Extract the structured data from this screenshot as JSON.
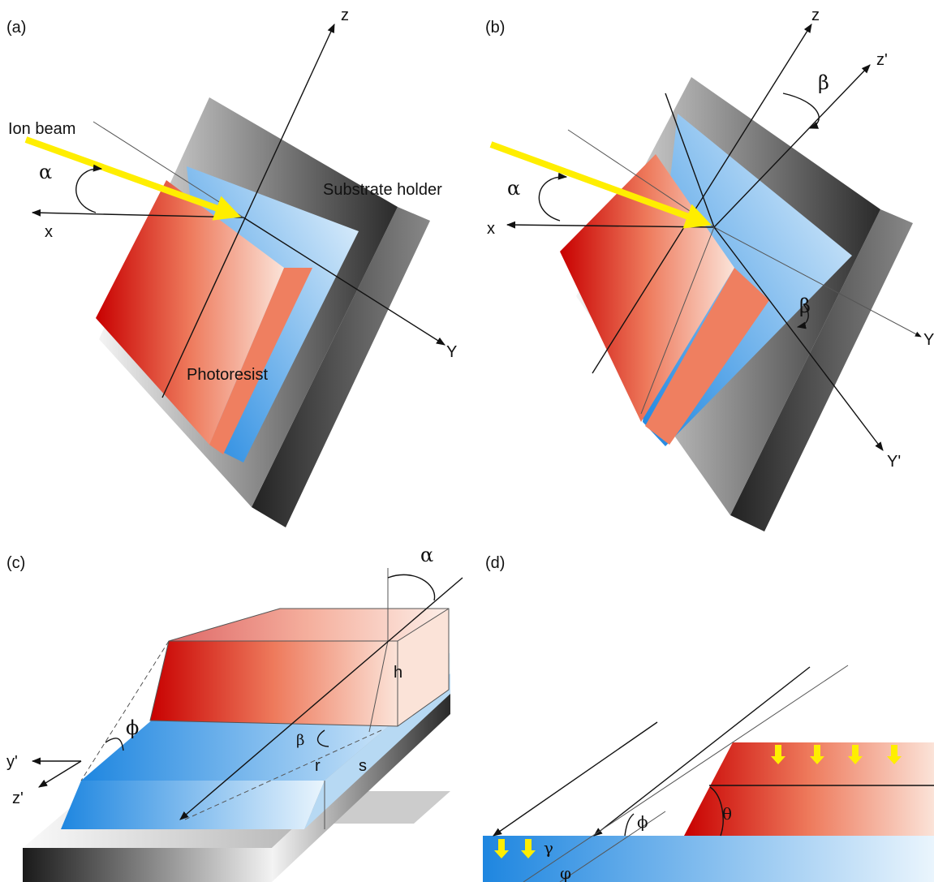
{
  "panels": [
    {
      "label": "(a)",
      "texts": {
        "z": "z",
        "ion_beam": "Ion beam",
        "alpha": "α",
        "x": "x",
        "substrate_holder": "Substrate holder",
        "y": "Y",
        "photoresist": "Photoresist"
      }
    },
    {
      "label": "(b)",
      "texts": {
        "z": "z",
        "z_prime": "z'",
        "beta_top": "β",
        "alpha": "α",
        "x": "x",
        "beta_mid": "β",
        "y": "Y",
        "y_prime": "Y'"
      }
    },
    {
      "label": "(c)",
      "texts": {
        "alpha": "α",
        "h": "h",
        "phi": "ϕ",
        "y_prime": "y'",
        "z_prime": "z'",
        "beta": "β",
        "r": "r",
        "s": "s"
      }
    },
    {
      "label": "(d)",
      "texts": {
        "phi": "ϕ",
        "theta": "θ",
        "gamma": "γ",
        "varphi": "φ"
      }
    }
  ]
}
